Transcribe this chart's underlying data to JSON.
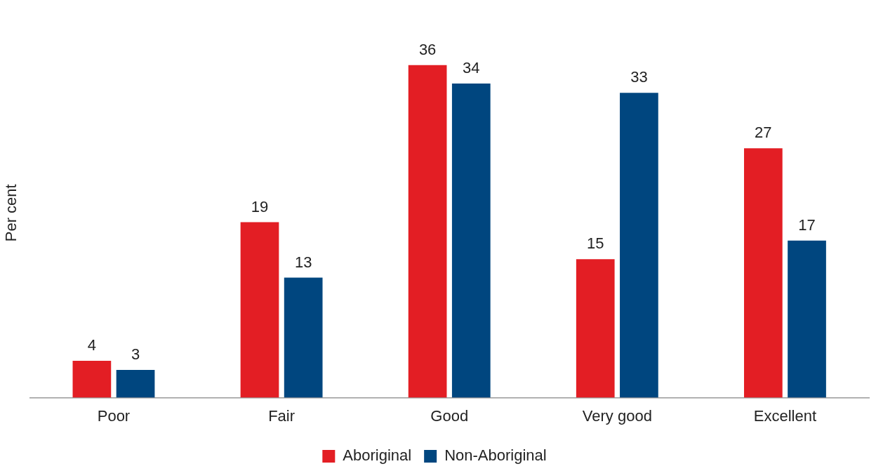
{
  "chart_data": {
    "type": "bar",
    "ylabel": "Per cent",
    "categories": [
      "Poor",
      "Fair",
      "Good",
      "Very good",
      "Excellent"
    ],
    "series": [
      {
        "name": "Aboriginal",
        "color": "#e31e24",
        "values": [
          4,
          19,
          36,
          15,
          27
        ]
      },
      {
        "name": "Non-Aboriginal",
        "color": "#00467f",
        "values": [
          3,
          13,
          34,
          33,
          17
        ]
      }
    ],
    "data_labels": true,
    "legend": "bottom",
    "grid": false
  }
}
